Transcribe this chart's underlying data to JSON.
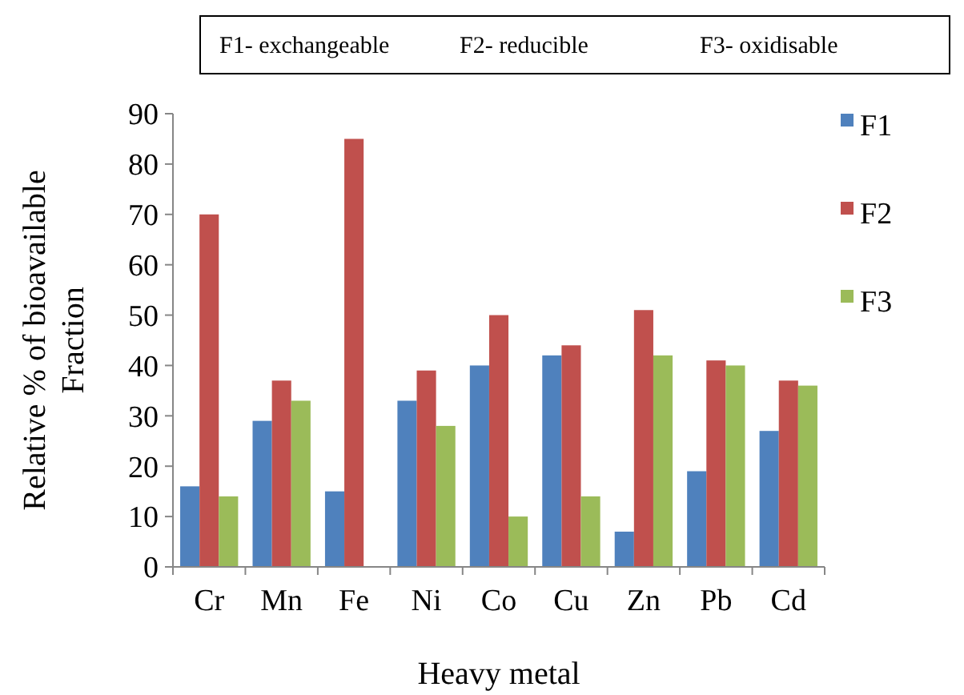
{
  "chart_data": {
    "type": "bar",
    "xlabel": "Heavy metal",
    "ylabel": "Relative % of bioavailable Fraction",
    "annotations": [
      "F1- exchangeable",
      "F2- reducible",
      "F3- oxidisable"
    ],
    "categories": [
      "Cr",
      "Mn",
      "Fe",
      "Ni",
      "Co",
      "Cu",
      "Zn",
      "Pb",
      "Cd"
    ],
    "series": [
      {
        "name": "F1",
        "color": "#4f81bd",
        "values": [
          16,
          29,
          15,
          33,
          40,
          42,
          7,
          19,
          27
        ]
      },
      {
        "name": "F2",
        "color": "#c0504d",
        "values": [
          70,
          37,
          85,
          39,
          50,
          44,
          51,
          41,
          37
        ]
      },
      {
        "name": "F3",
        "color": "#9bbb59",
        "values": [
          14,
          33,
          null,
          28,
          10,
          14,
          42,
          40,
          36
        ]
      }
    ],
    "ylim": [
      0,
      90
    ],
    "yticks": [
      0,
      10,
      20,
      30,
      40,
      50,
      60,
      70,
      80,
      90
    ],
    "grid": false,
    "legend": "right"
  }
}
